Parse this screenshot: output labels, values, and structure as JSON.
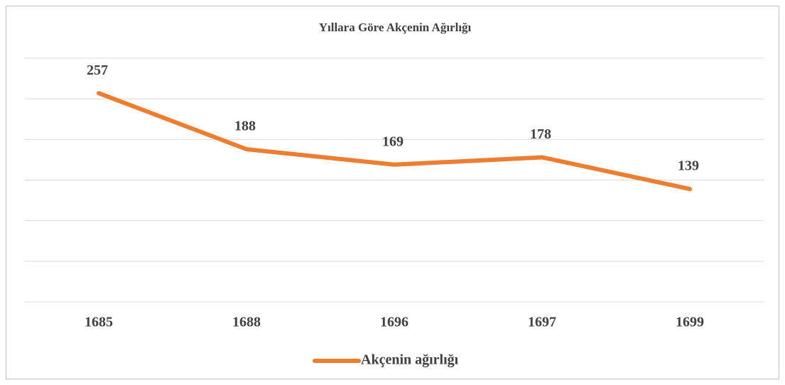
{
  "chart_data": {
    "type": "line",
    "title": "Yıllara Göre Akçenin Ağırlığı",
    "categories": [
      "1685",
      "1688",
      "1696",
      "1697",
      "1699"
    ],
    "series": [
      {
        "name": "Akçenin ağırlığı",
        "color": "#ed7d31",
        "values": [
          257,
          188,
          169,
          178,
          139
        ]
      }
    ],
    "ylim": [
      0,
      300
    ],
    "yticks": [
      0,
      50,
      100,
      150,
      200,
      250,
      300
    ],
    "grid": true,
    "legend": "bottom"
  }
}
